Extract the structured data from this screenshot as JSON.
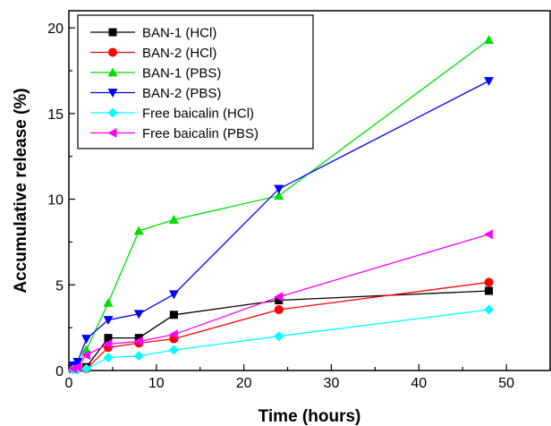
{
  "chart_data": {
    "type": "line",
    "xlabel": "Time (hours)",
    "ylabel": "Accumulative release (%)",
    "xlim": [
      0,
      55
    ],
    "ylim": [
      0,
      21
    ],
    "x_ticks": [
      0,
      10,
      20,
      30,
      40,
      50
    ],
    "y_ticks": [
      0,
      5,
      10,
      15,
      20
    ],
    "legend_position": "top-left",
    "x": [
      0.5,
      1,
      2,
      4.5,
      8,
      12,
      24,
      48
    ],
    "series": [
      {
        "name": "BAN-1 (HCl)",
        "color": "#000000",
        "marker": "square",
        "values": [
          0.1,
          0.15,
          0.2,
          1.9,
          1.9,
          3.25,
          4.1,
          4.65
        ]
      },
      {
        "name": "BAN-2 (HCl)",
        "color": "#ff0000",
        "marker": "circle",
        "values": [
          0.1,
          0.15,
          0.1,
          1.35,
          1.6,
          1.85,
          3.55,
          5.15
        ]
      },
      {
        "name": "BAN-1 (PBS)",
        "color": "#00dd00",
        "marker": "triangle-up",
        "values": [
          0.2,
          0.3,
          1.2,
          3.95,
          8.15,
          8.8,
          10.2,
          19.3
        ]
      },
      {
        "name": "BAN-2 (PBS)",
        "color": "#0000ff",
        "marker": "triangle-down",
        "values": [
          0.3,
          0.5,
          1.85,
          2.95,
          3.3,
          4.45,
          10.6,
          16.9
        ]
      },
      {
        "name": "Free baicalin (HCl)",
        "color": "#00ffff",
        "marker": "diamond",
        "values": [
          0.05,
          0.05,
          0.1,
          0.75,
          0.85,
          1.2,
          2.0,
          3.55
        ]
      },
      {
        "name": "Free baicalin (PBS)",
        "color": "#ff00ff",
        "marker": "triangle-left",
        "values": [
          0.1,
          0.2,
          0.9,
          1.55,
          1.7,
          2.1,
          4.3,
          7.95
        ]
      }
    ]
  }
}
